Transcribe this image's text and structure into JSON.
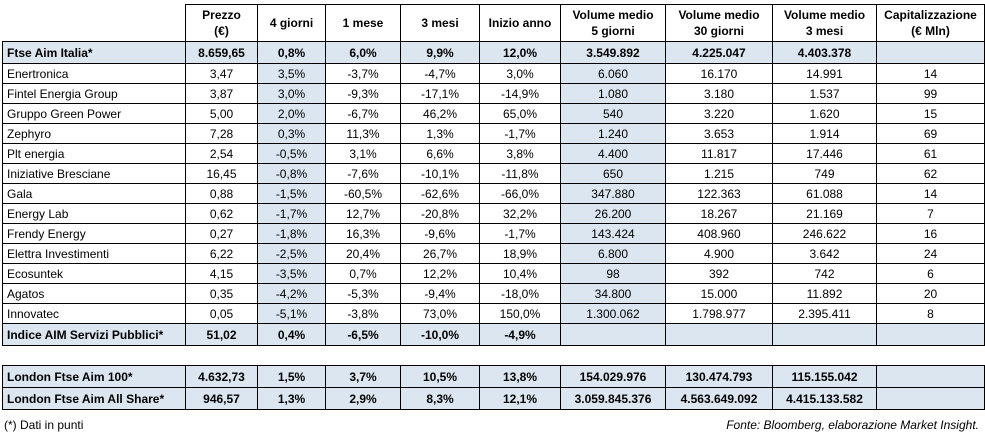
{
  "header": [
    [
      "Prezzo",
      "(€)"
    ],
    [
      "4 giorni"
    ],
    [
      "1 mese"
    ],
    [
      "3 mesi"
    ],
    [
      "Inizio anno"
    ],
    [
      "Volume medio",
      "5 giorni"
    ],
    [
      "Volume medio",
      "30 giorni"
    ],
    [
      "Volume medio",
      "3 mesi"
    ],
    [
      "Capitalizzazione",
      "(€ Mln)"
    ]
  ],
  "index_row": [
    "Ftse Aim Italia*",
    "8.659,65",
    "0,8%",
    "6,0%",
    "9,9%",
    "12,0%",
    "3.549.892",
    "4.225.047",
    "4.403.378"
  ],
  "stocks": [
    [
      "Enertronica",
      "3,47",
      "3,5%",
      "-3,7%",
      "-4,7%",
      "3,0%",
      "6.060",
      "16.170",
      "14.991",
      "14"
    ],
    [
      "Fintel Energia Group",
      "3,87",
      "3,0%",
      "-9,3%",
      "-17,1%",
      "-14,9%",
      "1.080",
      "3.180",
      "1.537",
      "99"
    ],
    [
      "Gruppo Green Power",
      "5,00",
      "2,0%",
      "-6,7%",
      "46,2%",
      "65,0%",
      "540",
      "3.220",
      "1.620",
      "15"
    ],
    [
      "Zephyro",
      "7,28",
      "0,3%",
      "11,3%",
      "1,3%",
      "-1,7%",
      "1.240",
      "3.653",
      "1.914",
      "69"
    ],
    [
      "Plt energia",
      "2,54",
      "-0,5%",
      "3,1%",
      "6,6%",
      "3,8%",
      "4.400",
      "11.817",
      "17.446",
      "61"
    ],
    [
      "Iniziative Bresciane",
      "16,45",
      "-0,8%",
      "-7,6%",
      "-10,1%",
      "-11,8%",
      "650",
      "1.215",
      "749",
      "62"
    ],
    [
      "Gala",
      "0,88",
      "-1,5%",
      "-60,5%",
      "-62,6%",
      "-66,0%",
      "347.880",
      "122.363",
      "61.088",
      "14"
    ],
    [
      "Energy Lab",
      "0,62",
      "-1,7%",
      "12,7%",
      "-20,8%",
      "32,2%",
      "26.200",
      "18.267",
      "21.169",
      "7"
    ],
    [
      "Frendy Energy",
      "0,27",
      "-1,8%",
      "16,3%",
      "-9,6%",
      "-1,7%",
      "143.424",
      "408.960",
      "246.622",
      "16"
    ],
    [
      "Elettra Investimenti",
      "6,22",
      "-2,5%",
      "20,4%",
      "26,7%",
      "18,9%",
      "6.800",
      "4.900",
      "3.642",
      "24"
    ],
    [
      "Ecosuntek",
      "4,15",
      "-3,5%",
      "0,7%",
      "12,2%",
      "10,4%",
      "98",
      "392",
      "742",
      "6"
    ],
    [
      "Agatos",
      "0,35",
      "-4,2%",
      "-5,3%",
      "-9,4%",
      "-18,0%",
      "34.800",
      "15.000",
      "11.892",
      "20"
    ],
    [
      "Innovatec",
      "0,05",
      "-5,1%",
      "-3,8%",
      "73,0%",
      "150,0%",
      "1.300.062",
      "1.798.977",
      "2.395.411",
      "8"
    ]
  ],
  "sector_row": [
    "Indice AIM Servizi Pubblici*",
    "51,02",
    "0,4%",
    "-6,5%",
    "-10,0%",
    "-4,9%"
  ],
  "london_rows": [
    [
      "London Ftse Aim 100*",
      "4.632,73",
      "1,5%",
      "3,7%",
      "10,5%",
      "13,8%",
      "154.029.976",
      "130.474.793",
      "115.155.042"
    ],
    [
      "London Ftse Aim All Share*",
      "946,57",
      "1,3%",
      "2,9%",
      "8,3%",
      "12,1%",
      "3.059.845.376",
      "4.563.649.092",
      "4.415.133.582"
    ]
  ],
  "footer": {
    "note": "(*) Dati in punti",
    "source": "Fonte: Bloomberg, elaborazione Market Insight."
  }
}
